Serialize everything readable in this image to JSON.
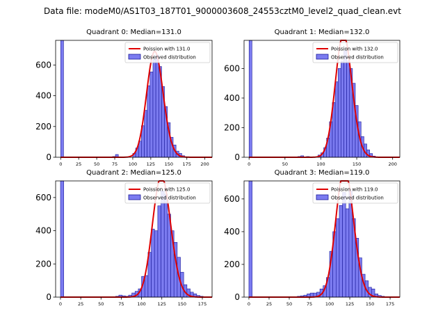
{
  "figure_title": "Data file: modeM0/AS1T03_187T01_9000003608_24553cztM0_level2_quad_clean.evt",
  "colors": {
    "bar_fill": "#7b7bf0",
    "bar_edge": "#1a1a99",
    "poisson_line": "#e00000"
  },
  "chart_data": [
    {
      "type": "bar",
      "title": "Quadrant 0: Median=131.0",
      "xlim": [
        -7,
        210
      ],
      "ylim": [
        0,
        760
      ],
      "xticks": [
        "0",
        "25",
        "50",
        "75",
        "100",
        "125",
        "150",
        "175",
        "200"
      ],
      "yticks": [
        "0",
        "200",
        "400",
        "600"
      ],
      "bin_width": 4,
      "bins_x": [
        0,
        72,
        76,
        100,
        104,
        108,
        112,
        116,
        120,
        124,
        128,
        132,
        136,
        140,
        144,
        148,
        152,
        156,
        160,
        164,
        168
      ],
      "values": [
        760,
        5,
        18,
        25,
        60,
        105,
        205,
        305,
        465,
        555,
        635,
        665,
        590,
        460,
        330,
        225,
        130,
        80,
        40,
        25,
        10
      ],
      "poisson_mean": 131,
      "legend": [
        "Poission with 131.0",
        "Observed distribution"
      ]
    },
    {
      "type": "bar",
      "title": "Quadrant 1: Median=132.0",
      "xlim": [
        -7,
        210
      ],
      "ylim": [
        0,
        790
      ],
      "xticks": [
        "0",
        "50",
        "100",
        "150",
        "200"
      ],
      "yticks": [
        "0",
        "200",
        "400",
        "600"
      ],
      "bin_width": 4,
      "bins_x": [
        0,
        68,
        72,
        80,
        96,
        100,
        104,
        108,
        112,
        116,
        120,
        124,
        128,
        132,
        136,
        140,
        144,
        148,
        152,
        156,
        160,
        164,
        168,
        172
      ],
      "values": [
        790,
        5,
        10,
        5,
        15,
        30,
        65,
        130,
        240,
        370,
        510,
        600,
        650,
        720,
        650,
        600,
        500,
        350,
        240,
        140,
        90,
        50,
        25,
        8
      ],
      "poisson_mean": 132,
      "legend": [
        "Poission with 132.0",
        "Observed distribution"
      ]
    },
    {
      "type": "bar",
      "title": "Quadrant 2: Median=125.0",
      "xlim": [
        -6,
        187
      ],
      "ylim": [
        0,
        700
      ],
      "xticks": [
        "0",
        "25",
        "50",
        "75",
        "100",
        "125",
        "150",
        "175"
      ],
      "yticks": [
        "0",
        "200",
        "400",
        "600"
      ],
      "bin_width": 4,
      "bins_x": [
        0,
        64,
        68,
        72,
        76,
        80,
        84,
        88,
        92,
        96,
        100,
        104,
        108,
        112,
        116,
        120,
        124,
        128,
        132,
        136,
        140,
        144,
        148,
        152,
        156,
        160,
        164,
        168,
        172
      ],
      "values": [
        700,
        3,
        5,
        12,
        8,
        5,
        12,
        25,
        35,
        50,
        125,
        130,
        270,
        410,
        400,
        550,
        640,
        620,
        500,
        400,
        330,
        240,
        150,
        75,
        50,
        30,
        20,
        10,
        5
      ],
      "poisson_mean": 125,
      "legend": [
        "Poission with 125.0",
        "Observed distribution"
      ]
    },
    {
      "type": "bar",
      "title": "Quadrant 3: Median=119.0",
      "xlim": [
        -6,
        187
      ],
      "ylim": [
        0,
        710
      ],
      "xticks": [
        "0",
        "25",
        "50",
        "75",
        "100",
        "125",
        "150",
        "175"
      ],
      "yticks": [
        "0",
        "200",
        "400",
        "600"
      ],
      "bin_width": 4,
      "bins_x": [
        0,
        60,
        64,
        68,
        72,
        76,
        80,
        84,
        88,
        92,
        96,
        100,
        104,
        108,
        112,
        116,
        120,
        124,
        128,
        132,
        136,
        140,
        144,
        148,
        152,
        156,
        160,
        164
      ],
      "values": [
        710,
        5,
        8,
        12,
        20,
        25,
        25,
        30,
        50,
        70,
        120,
        280,
        400,
        480,
        560,
        640,
        540,
        650,
        480,
        360,
        240,
        140,
        100,
        60,
        50,
        20,
        10,
        5
      ],
      "poisson_mean": 119,
      "legend": [
        "Poission with 119.0",
        "Observed distribution"
      ]
    }
  ]
}
